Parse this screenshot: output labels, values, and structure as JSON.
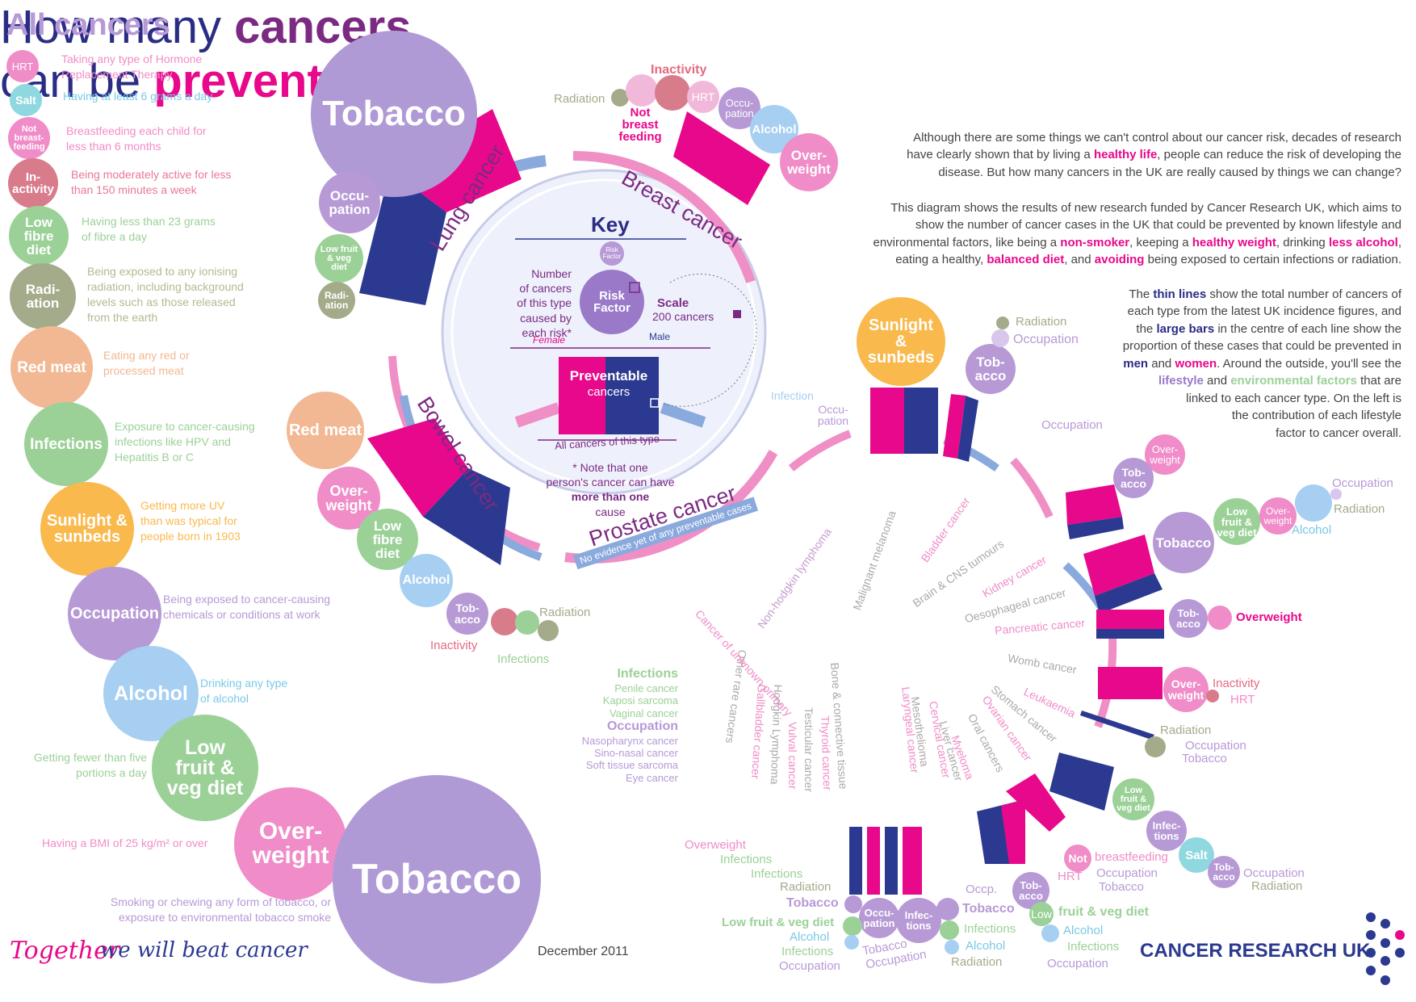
{
  "title": {
    "line1_pre": "How many",
    "line1_b": "cancers",
    "line2_pre": "can be",
    "line2_b": "prevented",
    "line2_post": "?"
  },
  "intro1": [
    "Although there are some things we can't control about our cancer risk, decades of research",
    "have clearly shown that by living a",
    "healthy life",
    ", people can reduce the risk of developing the",
    "disease. But how many cancers in the UK are really caused by things we can change?"
  ],
  "intro2": {
    "l1": "This diagram shows the results of new research funded by Cancer Research UK, which aims to",
    "l2": "show the number of cancer cases in the UK that could be prevented by known lifestyle and",
    "l3a": "environmental factors, like being a",
    "l3b": "non-smoker",
    "l3c": ", keeping a",
    "l3d": "healthy weight",
    "l3e": ", drinking",
    "l3f": "less alcohol",
    "l3g": ",",
    "l4a": "eating a healthy,",
    "l4b": "balanced diet",
    "l4c": ", and",
    "l4d": "avoiding",
    "l4e": "being exposed to certain infections or radiation."
  },
  "intro3": {
    "a1": "The",
    "a2": "thin lines",
    "a3": "show the total number of cancers of",
    "b1": "each type from the latest UK incidence figures, and",
    "c1": "the",
    "c2": "large bars",
    "c3": "in the centre of each line show the",
    "d1": "proportion of these cases that could be prevented in",
    "e1": "men",
    "e2": "and",
    "e3": "women",
    "e4": ". Around the outside, you'll see the",
    "f1": "lifestyle",
    "f2": "and",
    "f3": "environmental",
    "f4": "factors",
    "f5": "that are",
    "g1": "linked to each cancer type. On the left is",
    "h1": "the contribution of each lifestyle",
    "i1": "factor to cancer overall."
  },
  "all_cancers": {
    "heading": "All cancers",
    "items": [
      {
        "name": "HRT",
        "desc": [
          "Taking any type of Hormone",
          "Replacement Therapy"
        ],
        "color": "#f08cc8"
      },
      {
        "name": "Salt",
        "desc": [
          "Having at least 6 grams a day"
        ],
        "color": "#8fd8e0"
      },
      {
        "name": "Not breast-feeding",
        "desc": [
          "Breastfeeding each child for",
          "less than 6 months"
        ],
        "color": "#f08cc8"
      },
      {
        "name": "In-activity",
        "desc": [
          "Being moderately active for less",
          "than 150 minutes a week"
        ],
        "color": "#d87c8c"
      },
      {
        "name": "Low fibre diet",
        "desc": [
          "Having less than 23 grams",
          "of fibre a day"
        ],
        "color": "#9bd197"
      },
      {
        "name": "Radi-ation",
        "desc": [
          "Being exposed to any ionising",
          "radiation, including background",
          "levels such as those released",
          "from the earth"
        ],
        "color": "#a4ab8a"
      },
      {
        "name": "Red meat",
        "desc": [
          "Eating any red or",
          "processed meat"
        ],
        "color": "#f2b893"
      },
      {
        "name": "Infections",
        "desc": [
          "Exposure to cancer-causing",
          "infections like HPV and",
          "Hepatitis B or C"
        ],
        "color": "#9bd197"
      },
      {
        "name": "Sunlight & sunbeds",
        "desc": [
          "Getting more UV",
          "than was typical for",
          "people born in 1903"
        ],
        "color": "#f9b94d"
      },
      {
        "name": "Occupation",
        "desc": [
          "Being exposed to cancer-causing",
          "chemicals or conditions at work"
        ],
        "color": "#b799d6"
      },
      {
        "name": "Alcohol",
        "desc": [
          "Drinking any type",
          "of alcohol"
        ],
        "color": "#a6cff2"
      },
      {
        "name": "Low fruit & veg diet",
        "desc": [
          "Getting fewer than five",
          "portions a day"
        ],
        "color": "#9bd197"
      },
      {
        "name": "Over-weight",
        "desc": [
          "Having a BMI of 25 kg/m² or over"
        ],
        "color": "#f08cc8"
      },
      {
        "name": "Tobacco",
        "desc": [
          "Smoking or chewing any form of tobacco, or",
          "exposure to environmental tobacco smoke"
        ],
        "color": "#b09ad6"
      }
    ]
  },
  "key": {
    "title": "Key",
    "risk_factor_small": "Risk Factor",
    "risk_factor": "Risk Factor",
    "number_text": [
      "Number",
      "of cancers",
      "of this type",
      "caused by",
      "each risk*"
    ],
    "scale": "Scale",
    "scale_value": "200 cancers",
    "female": "Female",
    "male": "Male",
    "preventable1": "Preventable",
    "preventable2": "cancers",
    "all_cancers": "All cancers of this type",
    "note": [
      "* Note that one",
      "person's cancer can have"
    ],
    "note_b": "more than one",
    "note_end": "cause"
  },
  "cancers_main": {
    "lung": "Lung cancer",
    "breast": "Breast cancer",
    "bowel": "Bowel cancer",
    "prostate": "Prostate cancer",
    "prostate_note": "No evidence yet of any preventable cases"
  },
  "big_circles": {
    "tobacco_top": "Tobacco",
    "lung_occ": "Occu-pation",
    "lung_fruit": "Low fruit & veg diet",
    "lung_rad": "Radi-ation",
    "breast_inactivity": "Inactivity",
    "breast_radiation": "Radiation",
    "breast_notbf": "Not breast feeding",
    "breast_hrt": "HRT",
    "breast_occ": "Occu-pation",
    "breast_alcohol": "Alcohol",
    "breast_overweight": "Over-weight",
    "bowel_redmeat": "Red meat",
    "bowel_overweight": "Over-weight",
    "bowel_fibre": "Low fibre diet",
    "bowel_alcohol": "Alcohol",
    "bowel_tobacco": "Tob-acco",
    "bowel_radiation": "Radiation",
    "bowel_inactivity": "Inactivity",
    "bowel_infections": "Infections",
    "melanoma_sun": "Sunlight & sunbeds",
    "bladder_tob": "Tob-acco",
    "bladder_rad": "Radiation",
    "bladder_occ": "Occupation",
    "kidney_over": "Over-weight",
    "kidney_tob": "Tob-acco",
    "oes_tob": "Tobacco",
    "oes_fruit": "Low fruit & veg diet",
    "oes_over": "Over-weight",
    "oes_alc": "Alcohol",
    "oes_occ": "Occupation",
    "oes_rad": "Radiation",
    "pan_tob": "Tob-acco",
    "pan_over": "Overweight",
    "womb_over": "Over-weight",
    "womb_inact": "Inactivity",
    "womb_hrt": "HRT",
    "leuk_rad": "Radiation",
    "leuk_occ": "Occupation",
    "leuk_tob": "Tobacco",
    "stom_fruit": "Low fruit & veg diet",
    "stom_inf": "Infec-tions",
    "stom_salt": "Salt",
    "stom_tob": "Tob-acco",
    "stom_occ": "Occupation",
    "stom_rad": "Radiation",
    "ovar_notbf": "Not",
    "ovar_bf": "breastfeeding",
    "ovar_hrt": "HRT",
    "ovar_occ": "Occupation",
    "ovar_tob": "Tobacco",
    "oral_tob": "Tob-acco",
    "oral_low": "Low",
    "oral_fruit": "fruit & veg diet",
    "oral_alc": "Alcohol",
    "oral_inf": "Infections",
    "oral_occ": "Occupation",
    "occp": "Occp.",
    "liver_tob": "Tobacco",
    "liver_inf_c": "Infec-tions",
    "liver_inf": "Infections",
    "liver_alc": "Alcohol",
    "liver_rad": "Radiation",
    "meso_occ": "Occu-pation",
    "meso_tob": "Tobacco",
    "meso_occ2": "Occupation",
    "lar_tob": "Tobacco",
    "lar_fruit": "Low fruit & veg diet",
    "lar_alc": "Alcohol",
    "lar_inf": "Infections",
    "lar_occ": "Occupation",
    "gal_over": "Overweight",
    "gal_inf": "Infections",
    "gal_inf2": "Infections",
    "gal_rad": "Radiation"
  },
  "small_cancers": [
    "Non-hodgkin lymphoma",
    "Malignant melanoma",
    "Bladder cancer",
    "Brain & CNS tumours",
    "Kidney cancer",
    "Oesophageal cancer",
    "Pancreatic cancer",
    "Womb cancer",
    "Leukaemia",
    "Stomach cancer",
    "Ovarian cancer",
    "Oral cancers",
    "Myeloma",
    "Liver cancer",
    "Cervical cancer",
    "Mesothelioma",
    "Laryngeal cancer",
    "Bone & connective tissue",
    "Thyroid cancer",
    "Testicular cancer",
    "Vulval cancer",
    "Hodgkin Lymphoma",
    "Gallbladder cancer",
    "Other rare cancers",
    "Cancer of unknown primary"
  ],
  "nhl_labels": {
    "infection": "Infection",
    "occupation": "Occu-pation"
  },
  "brain_occ": "Occupation",
  "rare": {
    "infections_h": "Infections",
    "infections": [
      "Penile cancer",
      "Kaposi sarcoma",
      "Vaginal cancer"
    ],
    "occupation_h": "Occupation",
    "occupation": [
      "Nasopharynx cancer",
      "Sino-nasal cancer",
      "Soft tissue sarcoma",
      "Eye cancer"
    ]
  },
  "footer": {
    "together": "Together",
    "rest": "we will beat cancer",
    "date": "December 2011",
    "brand": "CANCER RESEARCH UK"
  },
  "colors": {
    "pink": "#e8088b",
    "navy": "#2b3990",
    "lightpink": "#ef8fc6",
    "lightblue": "#8aa9dd",
    "purple": "#7b2a82"
  }
}
